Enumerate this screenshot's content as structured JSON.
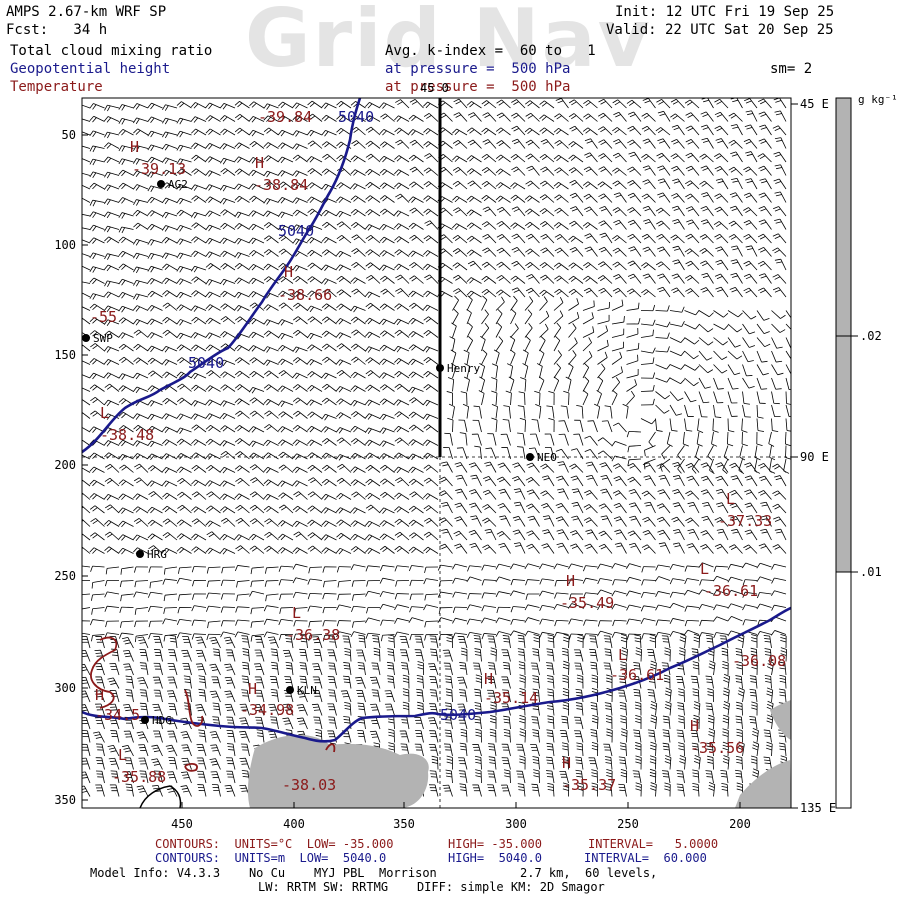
{
  "watermark": "Grid Nav",
  "header": {
    "model": "AMPS 2.67-km WRF SP",
    "fcst": "Fcst:   34 h",
    "init": "Init: 12 UTC Fri 19 Sep 25",
    "valid": "Valid: 22 UTC Sat 20 Sep 25",
    "field1": "Total cloud mixing ratio",
    "field2": "Geopotential height",
    "field3": "Temperature",
    "avg": "Avg. k-index =  60 to   1",
    "pressure1": "at pressure =  500 hPa",
    "pressure2": "at pressure =  500 hPa",
    "sm": "sm= 2"
  },
  "axes": {
    "y_ticks": [
      "50",
      "100",
      "150",
      "200",
      "250",
      "300",
      "350"
    ],
    "x_ticks": [
      "450",
      "400",
      "350",
      "300",
      "250",
      "200"
    ],
    "top_label": "45 0",
    "right_labels": [
      "45 E",
      "90 E",
      "135 E"
    ]
  },
  "colorbar": {
    "unit": "g kg⁻¹",
    "ticks": [
      ".02",
      ".01"
    ],
    "fill_levels": [
      0.0,
      0.01,
      0.02
    ],
    "colors": [
      "#ffffff",
      "#b3b3b3",
      "#b3b3b3"
    ]
  },
  "stations": [
    {
      "name": "AG2"
    },
    {
      "name": "SWP"
    },
    {
      "name": "Henry"
    },
    {
      "name": "NEO"
    },
    {
      "name": "HRG"
    },
    {
      "name": "KLN"
    },
    {
      "name": "HDG"
    }
  ],
  "height_labels": [
    "5040",
    "5040",
    "5040",
    "5040"
  ],
  "temp_labels": [
    {
      "kind": "H",
      "value": "-39.13"
    },
    {
      "kind": "",
      "value": "-39.84"
    },
    {
      "kind": "H",
      "value": "-38.84"
    },
    {
      "kind": "H",
      "value": "-38.66"
    },
    {
      "kind": "",
      "value": "-55"
    },
    {
      "kind": "L",
      "value": "-38.48"
    },
    {
      "kind": "L",
      "value": "-37.33"
    },
    {
      "kind": "H",
      "value": "-35.49"
    },
    {
      "kind": "L",
      "value": "-36.61"
    },
    {
      "kind": "L",
      "value": "-36.38"
    },
    {
      "kind": "",
      "value": "-36.08"
    },
    {
      "kind": "L",
      "value": "-36.61"
    },
    {
      "kind": "H",
      "value": "-35.14"
    },
    {
      "kind": "H",
      "value": "-34.98"
    },
    {
      "kind": "H",
      "value": "-34.5"
    },
    {
      "kind": "H",
      "value": "-35.56"
    },
    {
      "kind": "L",
      "value": "-35.88"
    },
    {
      "kind": "",
      "value": "-38.03"
    },
    {
      "kind": "H",
      "value": "-35.37"
    }
  ],
  "footer": {
    "contours_t": "CONTOURS:  UNITS=°C  LOW= -35.000",
    "high_t": "HIGH= -35.000",
    "interval_t": "INTERVAL=   5.0000",
    "contours_z": "CONTOURS:  UNITS=m  LOW=  5040.0",
    "high_z": "HIGH=  5040.0",
    "interval_z": "INTERVAL=  60.000",
    "model_info": "Model Info: V4.3.3    No Cu    MYJ PBL  Morrison",
    "resolution": "2.7 km,  60 levels,",
    "physics": "LW: RRTM SW: RRTMG    DIFF: simple KM: 2D Smagor"
  },
  "colors": {
    "height": "#1a1a8c",
    "temperature": "#8b1a1a",
    "cloud": "#b3b3b3"
  }
}
